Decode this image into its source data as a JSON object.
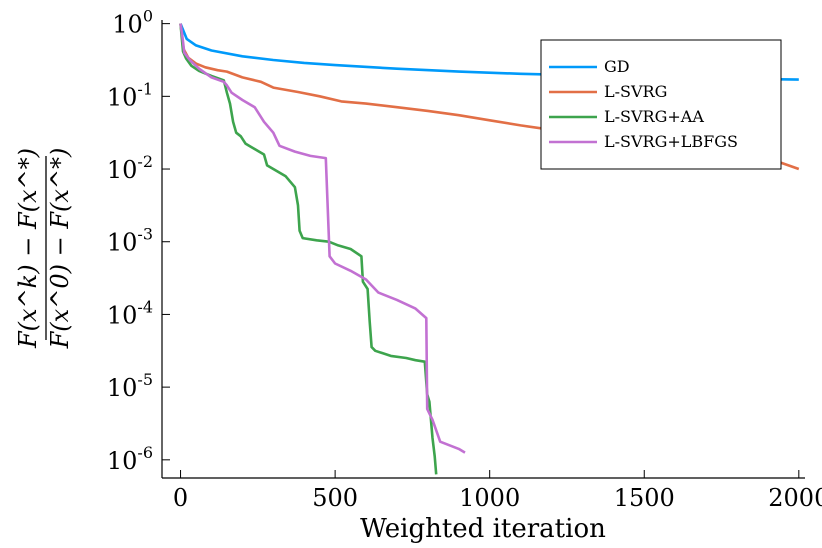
{
  "chart_data": {
    "type": "line",
    "title": "",
    "xlabel": "Weighted iteration",
    "ylabel": {
      "numerator": "F(x^k) − F(x^*)",
      "denominator": "F(x^0) − F(x^*)"
    },
    "y_scale": "log10",
    "xlim": [
      -60,
      2020
    ],
    "ylim_log10": [
      -6.25,
      0.05
    ],
    "x_ticks": [
      0,
      500,
      1000,
      1500,
      2000
    ],
    "x_tick_labels": [
      "0",
      "500",
      "1000",
      "1500",
      "2000"
    ],
    "y_ticks_log10": [
      0,
      -1,
      -2,
      -3,
      -4,
      -5,
      -6
    ],
    "y_tick_labels": [
      {
        "base": "10",
        "exp": "0"
      },
      {
        "base": "10",
        "exp": "-1"
      },
      {
        "base": "10",
        "exp": "-2"
      },
      {
        "base": "10",
        "exp": "-3"
      },
      {
        "base": "10",
        "exp": "-4"
      },
      {
        "base": "10",
        "exp": "-5"
      },
      {
        "base": "10",
        "exp": "-6"
      }
    ],
    "grid": false,
    "legend_position": "top-right",
    "series": [
      {
        "name": "GD",
        "color": "#009AFA",
        "points": [
          [
            0,
            0
          ],
          [
            20,
            -0.21
          ],
          [
            50,
            -0.3
          ],
          [
            100,
            -0.37
          ],
          [
            200,
            -0.45
          ],
          [
            300,
            -0.5
          ],
          [
            400,
            -0.54
          ],
          [
            500,
            -0.57
          ],
          [
            700,
            -0.62
          ],
          [
            900,
            -0.66
          ],
          [
            1100,
            -0.69
          ],
          [
            1300,
            -0.71
          ],
          [
            1500,
            -0.73
          ],
          [
            1700,
            -0.75
          ],
          [
            2000,
            -0.77
          ]
        ]
      },
      {
        "name": "L-SVRG",
        "color": "#E26F46",
        "points": [
          [
            0,
            0
          ],
          [
            10,
            -0.35
          ],
          [
            25,
            -0.47
          ],
          [
            50,
            -0.55
          ],
          [
            80,
            -0.6
          ],
          [
            120,
            -0.64
          ],
          [
            150,
            -0.66
          ],
          [
            200,
            -0.74
          ],
          [
            260,
            -0.8
          ],
          [
            300,
            -0.88
          ],
          [
            380,
            -0.94
          ],
          [
            450,
            -1.0
          ],
          [
            520,
            -1.07
          ],
          [
            600,
            -1.1
          ],
          [
            700,
            -1.15
          ],
          [
            800,
            -1.2
          ],
          [
            900,
            -1.26
          ],
          [
            1000,
            -1.33
          ],
          [
            1100,
            -1.4
          ],
          [
            1200,
            -1.46
          ],
          [
            1350,
            -1.52
          ],
          [
            1500,
            -1.6
          ],
          [
            1650,
            -1.68
          ],
          [
            1800,
            -1.78
          ],
          [
            1900,
            -1.85
          ],
          [
            2000,
            -2.0
          ]
        ]
      },
      {
        "name": "L-SVRG+AA",
        "color": "#3DA44D",
        "points": [
          [
            0,
            0
          ],
          [
            8,
            -0.38
          ],
          [
            18,
            -0.48
          ],
          [
            35,
            -0.58
          ],
          [
            60,
            -0.65
          ],
          [
            100,
            -0.72
          ],
          [
            140,
            -0.78
          ],
          [
            150,
            -0.95
          ],
          [
            160,
            -1.1
          ],
          [
            170,
            -1.35
          ],
          [
            180,
            -1.5
          ],
          [
            195,
            -1.55
          ],
          [
            210,
            -1.65
          ],
          [
            230,
            -1.7
          ],
          [
            250,
            -1.75
          ],
          [
            270,
            -1.8
          ],
          [
            280,
            -1.95
          ],
          [
            300,
            -2.0
          ],
          [
            340,
            -2.1
          ],
          [
            370,
            -2.25
          ],
          [
            380,
            -2.5
          ],
          [
            385,
            -2.85
          ],
          [
            395,
            -2.95
          ],
          [
            440,
            -2.98
          ],
          [
            480,
            -3.0
          ],
          [
            510,
            -3.05
          ],
          [
            550,
            -3.1
          ],
          [
            585,
            -3.2
          ],
          [
            590,
            -3.55
          ],
          [
            605,
            -3.65
          ],
          [
            612,
            -4.1
          ],
          [
            618,
            -4.45
          ],
          [
            630,
            -4.5
          ],
          [
            680,
            -4.57
          ],
          [
            730,
            -4.6
          ],
          [
            760,
            -4.63
          ],
          [
            790,
            -4.65
          ],
          [
            798,
            -5.1
          ],
          [
            805,
            -5.2
          ],
          [
            815,
            -5.7
          ],
          [
            822,
            -5.95
          ],
          [
            827,
            -6.2
          ]
        ]
      },
      {
        "name": "L-SVRG+LBFGS",
        "color": "#C271D2",
        "points": [
          [
            0,
            0
          ],
          [
            6,
            -0.18
          ],
          [
            12,
            -0.4
          ],
          [
            30,
            -0.5
          ],
          [
            60,
            -0.62
          ],
          [
            100,
            -0.74
          ],
          [
            140,
            -0.8
          ],
          [
            150,
            -0.85
          ],
          [
            165,
            -0.95
          ],
          [
            200,
            -1.05
          ],
          [
            240,
            -1.15
          ],
          [
            270,
            -1.35
          ],
          [
            300,
            -1.5
          ],
          [
            320,
            -1.68
          ],
          [
            370,
            -1.76
          ],
          [
            420,
            -1.82
          ],
          [
            470,
            -1.85
          ],
          [
            482,
            -3.2
          ],
          [
            500,
            -3.3
          ],
          [
            550,
            -3.4
          ],
          [
            600,
            -3.52
          ],
          [
            640,
            -3.7
          ],
          [
            700,
            -3.8
          ],
          [
            760,
            -3.92
          ],
          [
            795,
            -4.05
          ],
          [
            798,
            -5.3
          ],
          [
            815,
            -5.45
          ],
          [
            840,
            -5.75
          ],
          [
            870,
            -5.8
          ],
          [
            900,
            -5.85
          ],
          [
            920,
            -5.9
          ]
        ]
      }
    ]
  }
}
